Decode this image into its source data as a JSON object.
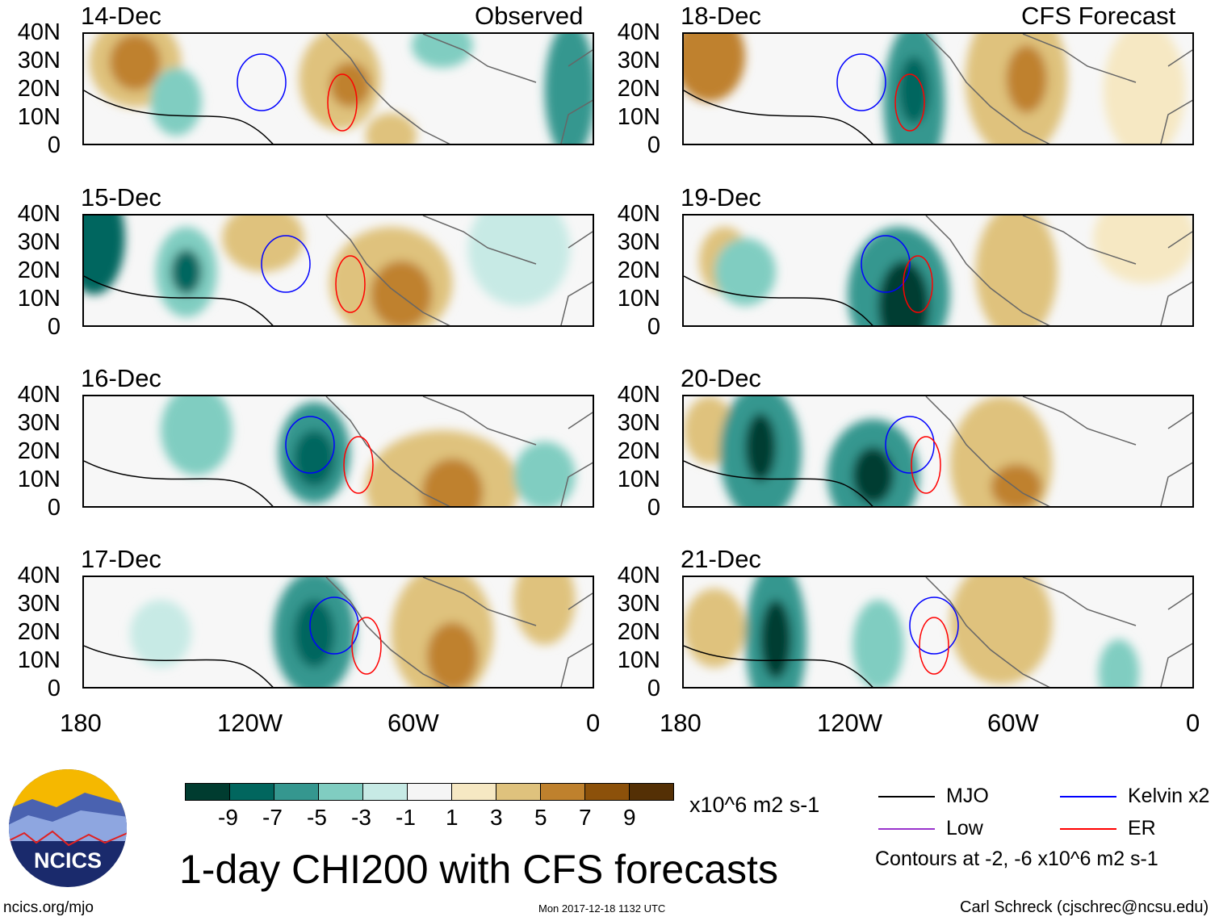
{
  "header": {
    "left_label": "Observed",
    "right_label": "CFS Forecast"
  },
  "panels_left": [
    {
      "date": "14-Dec"
    },
    {
      "date": "15-Dec"
    },
    {
      "date": "16-Dec"
    },
    {
      "date": "17-Dec"
    }
  ],
  "panels_right": [
    {
      "date": "18-Dec"
    },
    {
      "date": "19-Dec"
    },
    {
      "date": "20-Dec"
    },
    {
      "date": "21-Dec"
    }
  ],
  "lat_labels": [
    "40N",
    "30N",
    "20N",
    "10N",
    "0"
  ],
  "lon_labels": [
    "180",
    "120W",
    "60W",
    "0"
  ],
  "colorbar": {
    "colors": [
      "#003c30",
      "#01665e",
      "#35978f",
      "#80cdc1",
      "#c7eae5",
      "#f5f5f5",
      "#f6e8c3",
      "#dfc27d",
      "#bf812d",
      "#8c510a",
      "#543005"
    ],
    "ticks": [
      "-9",
      "-7",
      "-5",
      "-3",
      "-1",
      "1",
      "3",
      "5",
      "7",
      "9"
    ],
    "units": "x10^6 m2 s-1"
  },
  "legend": {
    "items": [
      {
        "label": "MJO",
        "color": "#000000"
      },
      {
        "label": "Kelvin x2",
        "color": "#0000ff"
      },
      {
        "label": "Low",
        "color": "#9933cc"
      },
      {
        "label": "ER",
        "color": "#ff0000"
      }
    ],
    "contours_note": "Contours at -2, -6 x10^6 m2 s-1"
  },
  "title": "1-day CHI200 with CFS forecasts",
  "logo_text": "NCICS",
  "footer": {
    "url": "ncics.org/mjo",
    "timestamp": "Mon 2017-12-18 1132 UTC",
    "author": "Carl Schreck (cjschrec@ncsu.edu)"
  }
}
